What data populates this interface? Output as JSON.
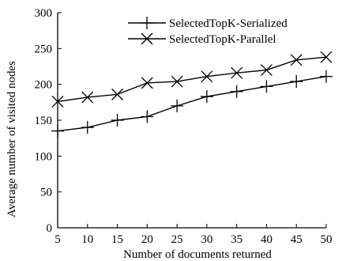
{
  "chart_data": {
    "type": "line",
    "xlabel": "Number of documents returned",
    "ylabel": "Average number of visited nodes",
    "x": [
      5,
      10,
      15,
      20,
      25,
      30,
      35,
      40,
      45,
      50
    ],
    "xlim": [
      5,
      50
    ],
    "ylim": [
      0,
      300
    ],
    "xticks": [
      "5",
      "10",
      "15",
      "20",
      "25",
      "30",
      "35",
      "40",
      "45",
      "50"
    ],
    "yticks": [
      "0",
      "50",
      "100",
      "150",
      "200",
      "250",
      "300"
    ],
    "grid": false,
    "legend_position": "top-right",
    "series": [
      {
        "name": "SelectedTopK-Serialized",
        "marker": "plus",
        "color": "#000000",
        "values": [
          135,
          140,
          150,
          155,
          170,
          183,
          190,
          197,
          204,
          211
        ]
      },
      {
        "name": "SelectedTopK-Parallel",
        "marker": "x",
        "color": "#000000",
        "values": [
          176,
          182,
          186,
          202,
          204,
          211,
          216,
          220,
          234,
          238
        ]
      }
    ]
  }
}
